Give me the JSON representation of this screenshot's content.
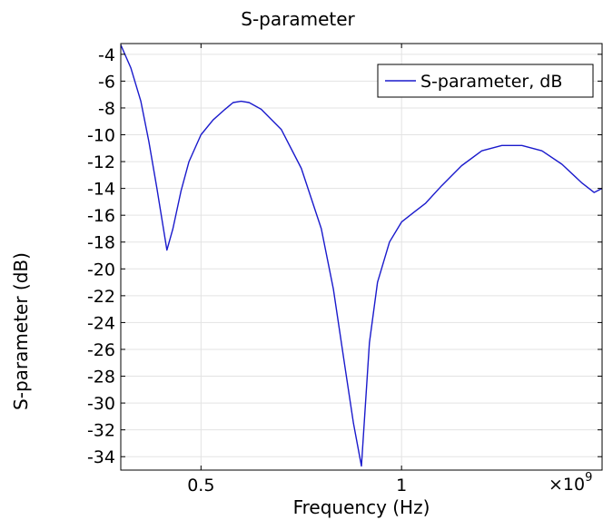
{
  "chart_data": {
    "type": "line",
    "title": "S-parameter",
    "xlabel": "Frequency (Hz)",
    "ylabel": "S-parameter (dB)",
    "x_multiplier_label": "×10",
    "x_multiplier_exponent": "9",
    "xlim": [
      0.3,
      1.5
    ],
    "ylim": [
      -35,
      -3.2
    ],
    "x_ticks": [
      0.5,
      1
    ],
    "x_tick_labels": [
      "0.5",
      "1"
    ],
    "y_ticks": [
      -4,
      -6,
      -8,
      -10,
      -12,
      -14,
      -16,
      -18,
      -20,
      -22,
      -24,
      -26,
      -28,
      -30,
      -32,
      -34
    ],
    "y_tick_labels": [
      "-4",
      "-6",
      "-8",
      "-10",
      "-12",
      "-14",
      "-16",
      "-18",
      "-20",
      "-22",
      "-24",
      "-26",
      "-28",
      "-30",
      "-32",
      "-34"
    ],
    "grid": true,
    "legend_position": "top-right",
    "series": [
      {
        "name": "S-parameter, dB",
        "color": "#1a1acc",
        "x": [
          0.3,
          0.325,
          0.35,
          0.37,
          0.39,
          0.415,
          0.43,
          0.45,
          0.47,
          0.5,
          0.53,
          0.56,
          0.58,
          0.6,
          0.62,
          0.65,
          0.7,
          0.75,
          0.8,
          0.83,
          0.86,
          0.88,
          0.9,
          0.92,
          0.94,
          0.97,
          1.0,
          1.03,
          1.06,
          1.1,
          1.15,
          1.2,
          1.25,
          1.3,
          1.35,
          1.4,
          1.45,
          1.48,
          1.5
        ],
        "values": [
          -3.3,
          -5.0,
          -7.5,
          -10.5,
          -14.0,
          -18.6,
          -17.0,
          -14.2,
          -12.0,
          -10.0,
          -8.9,
          -8.1,
          -7.6,
          -7.5,
          -7.6,
          -8.1,
          -9.6,
          -12.5,
          -17.0,
          -21.5,
          -27.5,
          -31.5,
          -34.7,
          -25.5,
          -21.0,
          -18.0,
          -16.5,
          -15.8,
          -15.1,
          -13.8,
          -12.3,
          -11.2,
          -10.8,
          -10.8,
          -11.2,
          -12.2,
          -13.6,
          -14.3,
          -14.0
        ]
      }
    ]
  }
}
